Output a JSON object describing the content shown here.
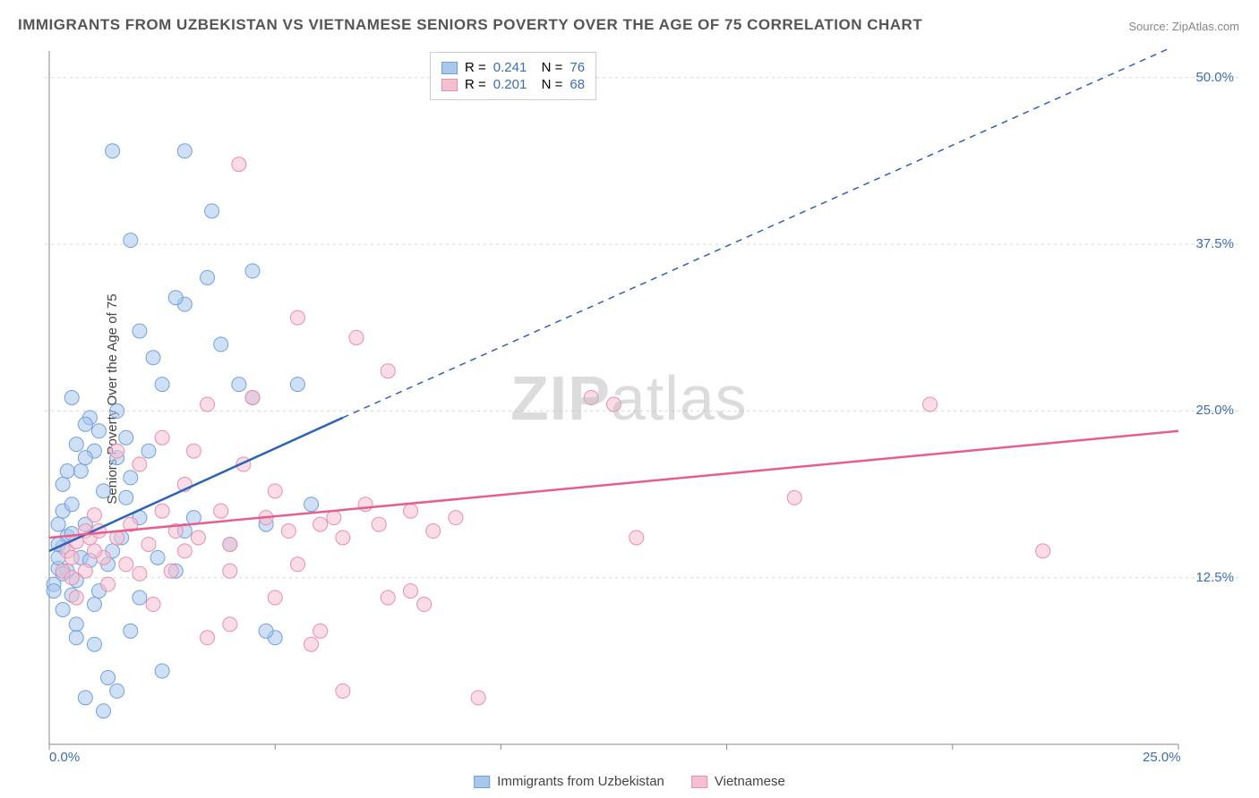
{
  "title": "IMMIGRANTS FROM UZBEKISTAN VS VIETNAMESE SENIORS POVERTY OVER THE AGE OF 75 CORRELATION CHART",
  "source": "Source: ZipAtlas.com",
  "ylabel": "Seniors Poverty Over the Age of 75",
  "watermark": {
    "bold": "ZIP",
    "thin": "atlas"
  },
  "chart": {
    "type": "scatter",
    "xlim": [
      0,
      25
    ],
    "ylim": [
      0,
      52
    ],
    "x_ticks": [
      0,
      5,
      10,
      15,
      20,
      25
    ],
    "x_tick_labels": [
      "0.0%",
      "",
      "",
      "",
      "",
      "25.0%"
    ],
    "y_ticks": [
      12.5,
      25.0,
      37.5,
      50.0
    ],
    "y_tick_labels": [
      "12.5%",
      "25.0%",
      "37.5%",
      "50.0%"
    ],
    "grid_color": "#d5d5d5",
    "grid_dash": "3,4",
    "axis_color": "#888",
    "background_color": "#ffffff",
    "marker_radius": 8,
    "marker_opacity": 0.55,
    "series": [
      {
        "name": "Immigrants from Uzbekistan",
        "color_fill": "#a7c7ec",
        "color_stroke": "#6fa1dd",
        "R": "0.241",
        "N": "76",
        "trend": {
          "x1": 0,
          "y1": 14.5,
          "x2": 6.5,
          "y2": 24.5,
          "xd": 25,
          "yd": 52.5,
          "color": "#2c62b8",
          "width": 2.5
        },
        "points": [
          [
            0.3,
            14.8
          ],
          [
            0.2,
            13.2
          ],
          [
            0.4,
            15.6
          ],
          [
            0.1,
            12.0
          ],
          [
            0.5,
            11.2
          ],
          [
            0.3,
            10.1
          ],
          [
            0.6,
            9.0
          ],
          [
            0.2,
            14.0
          ],
          [
            0.8,
            16.5
          ],
          [
            0.3,
            17.5
          ],
          [
            0.4,
            13.0
          ],
          [
            0.1,
            11.5
          ],
          [
            0.6,
            12.3
          ],
          [
            0.2,
            15.0
          ],
          [
            1.0,
            22.0
          ],
          [
            1.1,
            23.5
          ],
          [
            0.9,
            24.5
          ],
          [
            0.7,
            20.5
          ],
          [
            0.8,
            21.5
          ],
          [
            1.2,
            19.0
          ],
          [
            0.5,
            18.0
          ],
          [
            1.5,
            25.0
          ],
          [
            1.8,
            20.0
          ],
          [
            2.0,
            17.0
          ],
          [
            1.7,
            18.5
          ],
          [
            1.3,
            13.5
          ],
          [
            1.4,
            14.5
          ],
          [
            1.6,
            15.5
          ],
          [
            2.2,
            22.0
          ],
          [
            2.5,
            27.0
          ],
          [
            2.4,
            14.0
          ],
          [
            2.8,
            13.0
          ],
          [
            3.0,
            16.0
          ],
          [
            3.0,
            44.5
          ],
          [
            1.4,
            44.5
          ],
          [
            1.8,
            37.8
          ],
          [
            3.6,
            40.0
          ],
          [
            3.0,
            33.0
          ],
          [
            3.5,
            35.0
          ],
          [
            3.8,
            30.0
          ],
          [
            4.2,
            27.0
          ],
          [
            4.5,
            26.0
          ],
          [
            4.5,
            35.5
          ],
          [
            2.0,
            31.0
          ],
          [
            2.3,
            29.0
          ],
          [
            2.8,
            33.5
          ],
          [
            1.0,
            7.5
          ],
          [
            1.3,
            5.0
          ],
          [
            1.5,
            4.0
          ],
          [
            1.2,
            2.5
          ],
          [
            0.8,
            3.5
          ],
          [
            2.5,
            5.5
          ],
          [
            5.0,
            8.0
          ],
          [
            1.8,
            8.5
          ],
          [
            1.0,
            10.5
          ],
          [
            2.0,
            11.0
          ],
          [
            5.5,
            27.0
          ],
          [
            5.8,
            18.0
          ],
          [
            4.8,
            8.5
          ],
          [
            0.5,
            26.0
          ],
          [
            0.6,
            22.5
          ],
          [
            0.8,
            24.0
          ],
          [
            0.3,
            19.5
          ],
          [
            0.4,
            20.5
          ],
          [
            0.2,
            16.5
          ],
          [
            0.7,
            14.0
          ],
          [
            1.1,
            11.5
          ],
          [
            0.9,
            13.8
          ],
          [
            0.5,
            15.8
          ],
          [
            0.3,
            12.8
          ],
          [
            1.5,
            21.5
          ],
          [
            1.7,
            23.0
          ],
          [
            3.2,
            17.0
          ],
          [
            4.0,
            15.0
          ],
          [
            4.8,
            16.5
          ],
          [
            0.6,
            8.0
          ]
        ]
      },
      {
        "name": "Vietnamese",
        "color_fill": "#f4bfcf",
        "color_stroke": "#ea8daf",
        "R": "0.201",
        "N": "68",
        "trend": {
          "x1": 0,
          "y1": 15.5,
          "x2": 25,
          "y2": 23.5,
          "color": "#e75d8e",
          "width": 2.5
        },
        "points": [
          [
            0.4,
            14.5
          ],
          [
            0.6,
            15.2
          ],
          [
            0.3,
            13.0
          ],
          [
            0.8,
            16.0
          ],
          [
            0.5,
            12.5
          ],
          [
            1.0,
            17.2
          ],
          [
            1.2,
            14.0
          ],
          [
            1.5,
            15.5
          ],
          [
            1.8,
            16.5
          ],
          [
            2.0,
            12.8
          ],
          [
            2.3,
            10.5
          ],
          [
            2.5,
            17.5
          ],
          [
            2.8,
            16.0
          ],
          [
            3.0,
            14.5
          ],
          [
            3.2,
            22.0
          ],
          [
            3.5,
            25.5
          ],
          [
            3.8,
            17.5
          ],
          [
            4.0,
            15.0
          ],
          [
            4.3,
            21.0
          ],
          [
            4.5,
            26.0
          ],
          [
            5.0,
            19.0
          ],
          [
            5.3,
            16.0
          ],
          [
            5.5,
            13.5
          ],
          [
            6.0,
            8.5
          ],
          [
            6.3,
            17.0
          ],
          [
            6.8,
            30.5
          ],
          [
            7.0,
            18.0
          ],
          [
            7.3,
            16.5
          ],
          [
            4.2,
            43.5
          ],
          [
            5.5,
            32.0
          ],
          [
            7.5,
            28.0
          ],
          [
            8.0,
            17.5
          ],
          [
            8.3,
            10.5
          ],
          [
            8.5,
            16.0
          ],
          [
            9.0,
            17.0
          ],
          [
            9.5,
            3.5
          ],
          [
            6.5,
            4.0
          ],
          [
            7.5,
            11.0
          ],
          [
            8.0,
            11.5
          ],
          [
            5.0,
            11.0
          ],
          [
            4.0,
            9.0
          ],
          [
            3.5,
            8.0
          ],
          [
            2.7,
            13.0
          ],
          [
            12.0,
            26.0
          ],
          [
            12.5,
            25.5
          ],
          [
            13.0,
            15.5
          ],
          [
            16.5,
            18.5
          ],
          [
            19.5,
            25.5
          ],
          [
            22.0,
            14.5
          ],
          [
            6.0,
            16.5
          ],
          [
            6.5,
            15.5
          ],
          [
            3.0,
            19.5
          ],
          [
            2.0,
            21.0
          ],
          [
            1.5,
            22.0
          ],
          [
            1.0,
            14.5
          ],
          [
            0.8,
            13.0
          ],
          [
            0.6,
            11.0
          ],
          [
            1.3,
            12.0
          ],
          [
            1.7,
            13.5
          ],
          [
            2.2,
            15.0
          ],
          [
            4.8,
            17.0
          ],
          [
            5.8,
            7.5
          ],
          [
            0.5,
            14.0
          ],
          [
            0.9,
            15.5
          ],
          [
            1.1,
            16.0
          ],
          [
            2.5,
            23.0
          ],
          [
            3.3,
            15.5
          ],
          [
            4.0,
            13.0
          ]
        ]
      }
    ]
  },
  "legend_bottom": [
    {
      "label": "Immigrants from Uzbekistan",
      "fill": "#a7c7ec",
      "stroke": "#6fa1dd"
    },
    {
      "label": "Vietnamese",
      "fill": "#f4bfcf",
      "stroke": "#ea8daf"
    }
  ]
}
